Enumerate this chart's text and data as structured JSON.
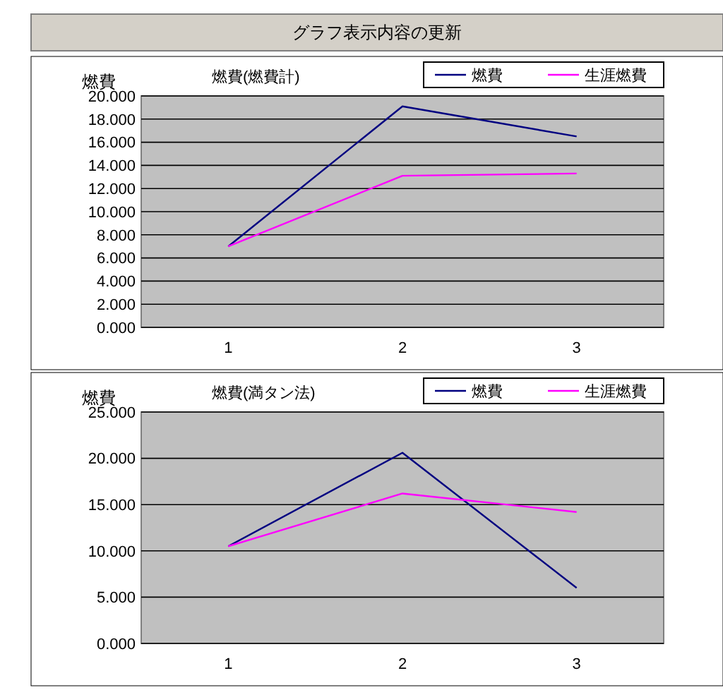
{
  "chart_data": [
    {
      "type": "line",
      "title": "燃費(燃費計)",
      "ylabel": "燃費",
      "annotations": [
        "グラフ表示内容の更新"
      ],
      "categories": [
        "1",
        "2",
        "3"
      ],
      "series": [
        {
          "name": "燃費",
          "color": "#000080",
          "values": [
            7.0,
            19.1,
            16.5
          ]
        },
        {
          "name": "生涯燃費",
          "color": "#ff00ff",
          "values": [
            7.0,
            13.1,
            13.3
          ]
        }
      ],
      "ylim": [
        0,
        20
      ],
      "yticks": [
        {
          "value": 0,
          "label": "0.000"
        },
        {
          "value": 2,
          "label": "2.000"
        },
        {
          "value": 4,
          "label": "4.000"
        },
        {
          "value": 6,
          "label": "6.000"
        },
        {
          "value": 8,
          "label": "8.000"
        },
        {
          "value": 10,
          "label": "10.000"
        },
        {
          "value": 12,
          "label": "12.000"
        },
        {
          "value": 14,
          "label": "14.000"
        },
        {
          "value": 16,
          "label": "16.000"
        },
        {
          "value": 18,
          "label": "18.000"
        },
        {
          "value": 20,
          "label": "20.000"
        }
      ],
      "grid": "y",
      "legend": "top right"
    },
    {
      "type": "line",
      "title": "燃費(満タン法)",
      "ylabel": "燃費",
      "categories": [
        "1",
        "2",
        "3"
      ],
      "series": [
        {
          "name": "燃費",
          "color": "#000080",
          "values": [
            10.5,
            20.6,
            6.0
          ]
        },
        {
          "name": "生涯燃費",
          "color": "#ff00ff",
          "values": [
            10.5,
            16.2,
            14.2
          ]
        }
      ],
      "ylim": [
        0,
        25
      ],
      "yticks": [
        {
          "value": 0,
          "label": "0.000"
        },
        {
          "value": 5,
          "label": "5.000"
        },
        {
          "value": 10,
          "label": "10.000"
        },
        {
          "value": 15,
          "label": "15.000"
        },
        {
          "value": 20,
          "label": "20.000"
        },
        {
          "value": 25,
          "label": "25.000"
        }
      ],
      "grid": "y",
      "legend": "top right"
    }
  ]
}
